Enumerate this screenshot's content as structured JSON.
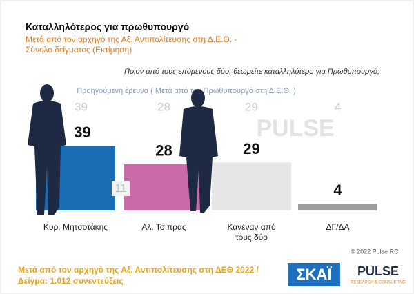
{
  "chart_data": {
    "type": "bar",
    "title": "Καταλληλότερος για πρωθυπουργό",
    "subtitle": [
      "Μετά από τον αρχηγό της Αξ. Αντιπολίτευσης στη Δ.Ε.Θ. -",
      "Σύνολο δείγματος   (Εκτίμηση)"
    ],
    "question": "Ποιον από τους επόμενους δύο, θεωρείτε καταλληλότερο για Πρωθυπουργό;",
    "categories": [
      "Κυρ. Μητσοτάκης",
      "Αλ. Τσίπρας",
      "Κανέναν από τους δύο",
      "ΔΓ/ΔΑ"
    ],
    "values": [
      39,
      28,
      29,
      4
    ],
    "colors": [
      "#1b6db3",
      "#c96aa9",
      "#e6e6e6",
      "#9d9d9d"
    ],
    "previous": {
      "name": "Προηγούμενη έρευνα  ( Μετά από τον Πρωθυπουργό στη Δ.Ε.Θ. )",
      "values": [
        39,
        28,
        29,
        4
      ]
    },
    "annotation": "11",
    "copyright": "© 2022 Pulse RC",
    "footer": [
      "Μετά από τον αρχηγό της Αξ. Αντιπολίτευσης στη ΔΕΘ  2022  /",
      "Δείγμα:  1.012 συνεντεύξεις"
    ],
    "logos": {
      "skai": "ΣΚΑΪ",
      "pulse": "PULSE",
      "pulse_sub": "RESEARCH & CONSULTING"
    }
  }
}
